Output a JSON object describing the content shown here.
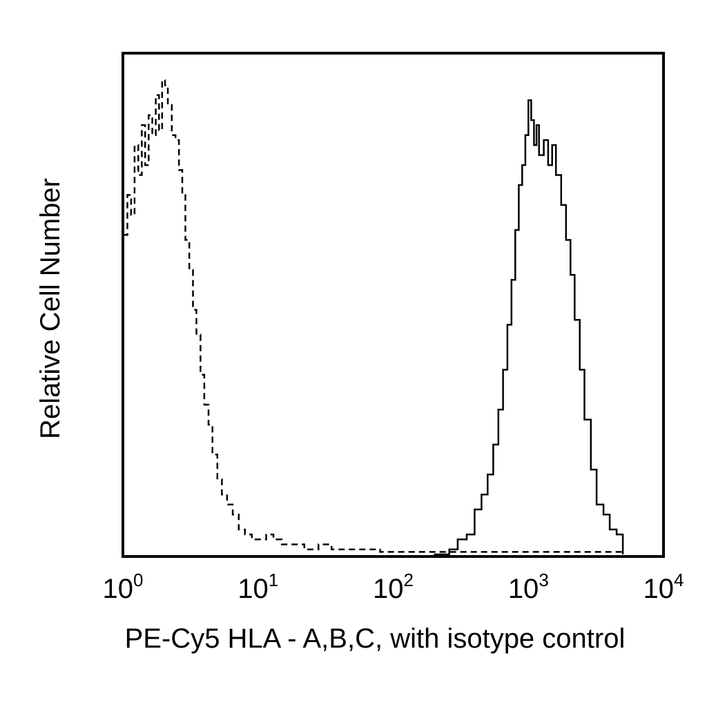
{
  "chart_data": {
    "type": "line",
    "title": "",
    "xlabel": "PE-Cy5 HLA - A,B,C, with isotype control",
    "ylabel": "Relative Cell Number",
    "x_scale": "log",
    "xlim": [
      1,
      10000
    ],
    "ylim": [
      0,
      100
    ],
    "x_ticks": [
      {
        "base": "10",
        "exp": "0",
        "value": 1
      },
      {
        "base": "10",
        "exp": "1",
        "value": 10
      },
      {
        "base": "10",
        "exp": "2",
        "value": 100
      },
      {
        "base": "10",
        "exp": "3",
        "value": 1000
      },
      {
        "base": "10",
        "exp": "4",
        "value": 10000
      }
    ],
    "grid": false,
    "legend": "none",
    "series": [
      {
        "style": "dashed",
        "color": "#000000",
        "x": [
          1.0,
          1.08,
          1.15,
          1.22,
          1.3,
          1.38,
          1.46,
          1.55,
          1.65,
          1.75,
          1.85,
          1.95,
          2.05,
          2.15,
          2.3,
          2.45,
          2.6,
          2.75,
          2.9,
          3.1,
          3.3,
          3.5,
          3.75,
          4.0,
          4.3,
          4.6,
          5.0,
          5.4,
          5.9,
          6.5,
          7.2,
          8.0,
          9.0,
          10.0,
          11.5,
          13.0,
          15.0,
          18.0,
          22.0,
          28.0,
          35.0,
          45.0,
          60.0,
          80.0,
          100.0,
          150.0,
          250.0,
          400.0,
          700.0,
          1000.0,
          2000.0,
          5000.0
        ],
        "y": [
          64,
          72,
          68,
          82,
          76,
          86,
          78,
          88,
          84,
          92,
          85,
          95,
          94,
          90,
          84,
          83,
          77,
          72,
          63,
          57,
          49,
          44,
          36,
          30,
          26,
          20,
          15,
          12,
          10,
          8,
          5,
          4,
          3,
          3,
          4,
          3,
          2,
          2,
          1,
          2,
          1,
          1,
          1,
          0.5,
          0.5,
          0.5,
          0.5,
          0.5,
          0.5,
          0.5,
          0.5,
          0.5
        ]
      },
      {
        "style": "solid",
        "color": "#000000",
        "x": [
          200,
          260,
          300,
          350,
          400,
          450,
          500,
          550,
          600,
          650,
          700,
          750,
          800,
          850,
          900,
          950,
          1000,
          1050,
          1100,
          1150,
          1200,
          1300,
          1400,
          1500,
          1600,
          1750,
          1900,
          2050,
          2200,
          2400,
          2600,
          2900,
          3200,
          3600,
          4000,
          4500,
          5000
        ],
        "y": [
          0,
          1,
          3,
          4,
          9,
          12,
          16,
          22,
          29,
          37,
          46,
          55,
          65,
          74,
          78,
          84,
          91,
          87,
          82,
          86,
          80,
          83,
          78,
          82,
          76,
          70,
          63,
          56,
          47,
          37,
          27,
          17,
          10,
          8,
          5,
          4,
          0
        ]
      }
    ]
  }
}
